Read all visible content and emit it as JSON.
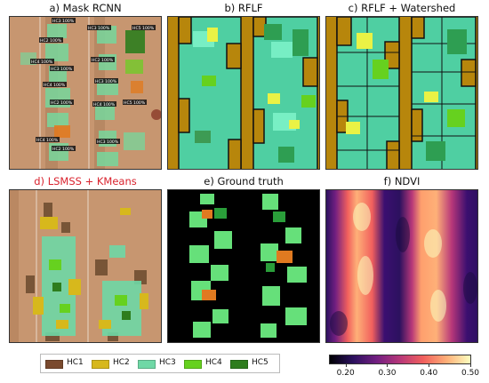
{
  "panels": [
    {
      "id": "a",
      "title": "a) Mask RCNN"
    },
    {
      "id": "b",
      "title": "b) RFLF"
    },
    {
      "id": "c",
      "title": "c) RFLF + Watershed"
    },
    {
      "id": "d",
      "title": "d) LSMSS + KMeans"
    },
    {
      "id": "e",
      "title": "e) Ground truth"
    },
    {
      "id": "f",
      "title": "f) NDVI"
    }
  ],
  "mask_labels": [
    "HC3 100%",
    "HC2 100%",
    "HC3 100%",
    "HC5 100%",
    "HC4 100%",
    "HC3 100%",
    "HC2 100%",
    "HC4 100%",
    "HC3 100%",
    "HC2 100%",
    "HC4 100%",
    "HC5 100%",
    "HC4 100%",
    "HC2 100%",
    "HC3 100%"
  ],
  "legend": [
    {
      "label": "HC1",
      "color": "#7a4a2e"
    },
    {
      "label": "HC2",
      "color": "#d7b81c"
    },
    {
      "label": "HC3",
      "color": "#6fd8a6"
    },
    {
      "label": "HC4",
      "color": "#66d11f"
    },
    {
      "label": "HC5",
      "color": "#2e7d1e"
    }
  ],
  "colorbar": {
    "ticks": [
      "0.20",
      "0.30",
      "0.40",
      "0.50"
    ],
    "tick_values": [
      0.2,
      0.3,
      0.4,
      0.5
    ],
    "range": [
      0.16,
      0.5
    ]
  }
}
